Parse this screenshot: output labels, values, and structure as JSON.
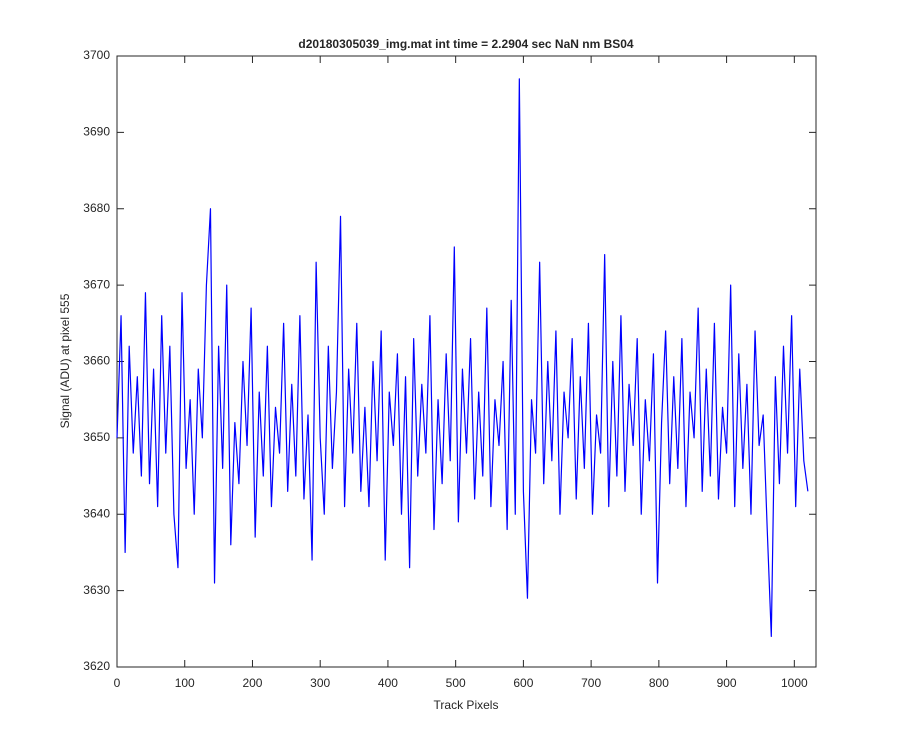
{
  "chart_data": {
    "type": "line",
    "title": "d20180305039_img.mat int time = 2.2904 sec  NaN nm BS04",
    "xlabel": "Track Pixels",
    "ylabel": "Signal (ADU) at pixel 555",
    "color": "#0000ff",
    "xlim": [
      0,
      1032
    ],
    "xticks": [
      0,
      100,
      200,
      300,
      400,
      500,
      600,
      700,
      800,
      900,
      1000
    ],
    "ylim": [
      3620,
      3700
    ],
    "yticks": [
      3620,
      3630,
      3640,
      3650,
      3660,
      3670,
      3680,
      3690,
      3700
    ],
    "x": [
      0,
      6,
      12,
      18,
      24,
      30,
      36,
      42,
      48,
      54,
      60,
      66,
      72,
      78,
      84,
      90,
      96,
      102,
      108,
      114,
      120,
      126,
      132,
      138,
      144,
      150,
      156,
      162,
      168,
      174,
      180,
      186,
      192,
      198,
      204,
      210,
      216,
      222,
      228,
      234,
      240,
      246,
      252,
      258,
      264,
      270,
      276,
      282,
      288,
      294,
      300,
      306,
      312,
      318,
      324,
      330,
      336,
      342,
      348,
      354,
      360,
      366,
      372,
      378,
      384,
      390,
      396,
      402,
      408,
      414,
      420,
      426,
      432,
      438,
      444,
      450,
      456,
      462,
      468,
      474,
      480,
      486,
      492,
      498,
      504,
      510,
      516,
      522,
      528,
      534,
      540,
      546,
      552,
      558,
      564,
      570,
      576,
      582,
      588,
      594,
      600,
      606,
      612,
      618,
      624,
      630,
      636,
      642,
      648,
      654,
      660,
      666,
      672,
      678,
      684,
      690,
      696,
      702,
      708,
      714,
      720,
      726,
      732,
      738,
      744,
      750,
      756,
      762,
      768,
      774,
      780,
      786,
      792,
      798,
      804,
      810,
      816,
      822,
      828,
      834,
      840,
      846,
      852,
      858,
      864,
      870,
      876,
      882,
      888,
      894,
      900,
      906,
      912,
      918,
      924,
      930,
      936,
      942,
      948,
      954,
      960,
      966,
      972,
      978,
      984,
      990,
      996,
      1002,
      1008,
      1014,
      1020
    ],
    "values": [
      3650,
      3666,
      3635,
      3662,
      3648,
      3658,
      3645,
      3669,
      3644,
      3659,
      3641,
      3666,
      3648,
      3662,
      3640,
      3633,
      3669,
      3646,
      3655,
      3640,
      3659,
      3650,
      3670,
      3680,
      3631,
      3662,
      3646,
      3670,
      3636,
      3652,
      3644,
      3660,
      3649,
      3667,
      3637,
      3656,
      3645,
      3662,
      3641,
      3654,
      3648,
      3665,
      3643,
      3657,
      3645,
      3666,
      3642,
      3653,
      3634,
      3673,
      3650,
      3640,
      3662,
      3646,
      3656,
      3679,
      3641,
      3659,
      3648,
      3665,
      3643,
      3654,
      3641,
      3660,
      3647,
      3664,
      3634,
      3656,
      3649,
      3661,
      3640,
      3658,
      3633,
      3663,
      3645,
      3657,
      3648,
      3666,
      3638,
      3655,
      3644,
      3661,
      3647,
      3675,
      3639,
      3659,
      3648,
      3663,
      3642,
      3656,
      3645,
      3667,
      3641,
      3655,
      3649,
      3660,
      3638,
      3668,
      3640,
      3697,
      3643,
      3629,
      3655,
      3648,
      3673,
      3644,
      3660,
      3647,
      3664,
      3640,
      3656,
      3650,
      3663,
      3642,
      3658,
      3646,
      3665,
      3640,
      3653,
      3648,
      3674,
      3641,
      3660,
      3645,
      3666,
      3643,
      3657,
      3649,
      3663,
      3640,
      3655,
      3647,
      3661,
      3631,
      3652,
      3664,
      3644,
      3658,
      3646,
      3663,
      3641,
      3656,
      3650,
      3667,
      3643,
      3659,
      3645,
      3665,
      3642,
      3654,
      3648,
      3670,
      3641,
      3661,
      3646,
      3657,
      3640,
      3664,
      3649,
      3653,
      3638,
      3624,
      3658,
      3644,
      3662,
      3648,
      3666,
      3641,
      3659,
      3647,
      3643
    ]
  }
}
